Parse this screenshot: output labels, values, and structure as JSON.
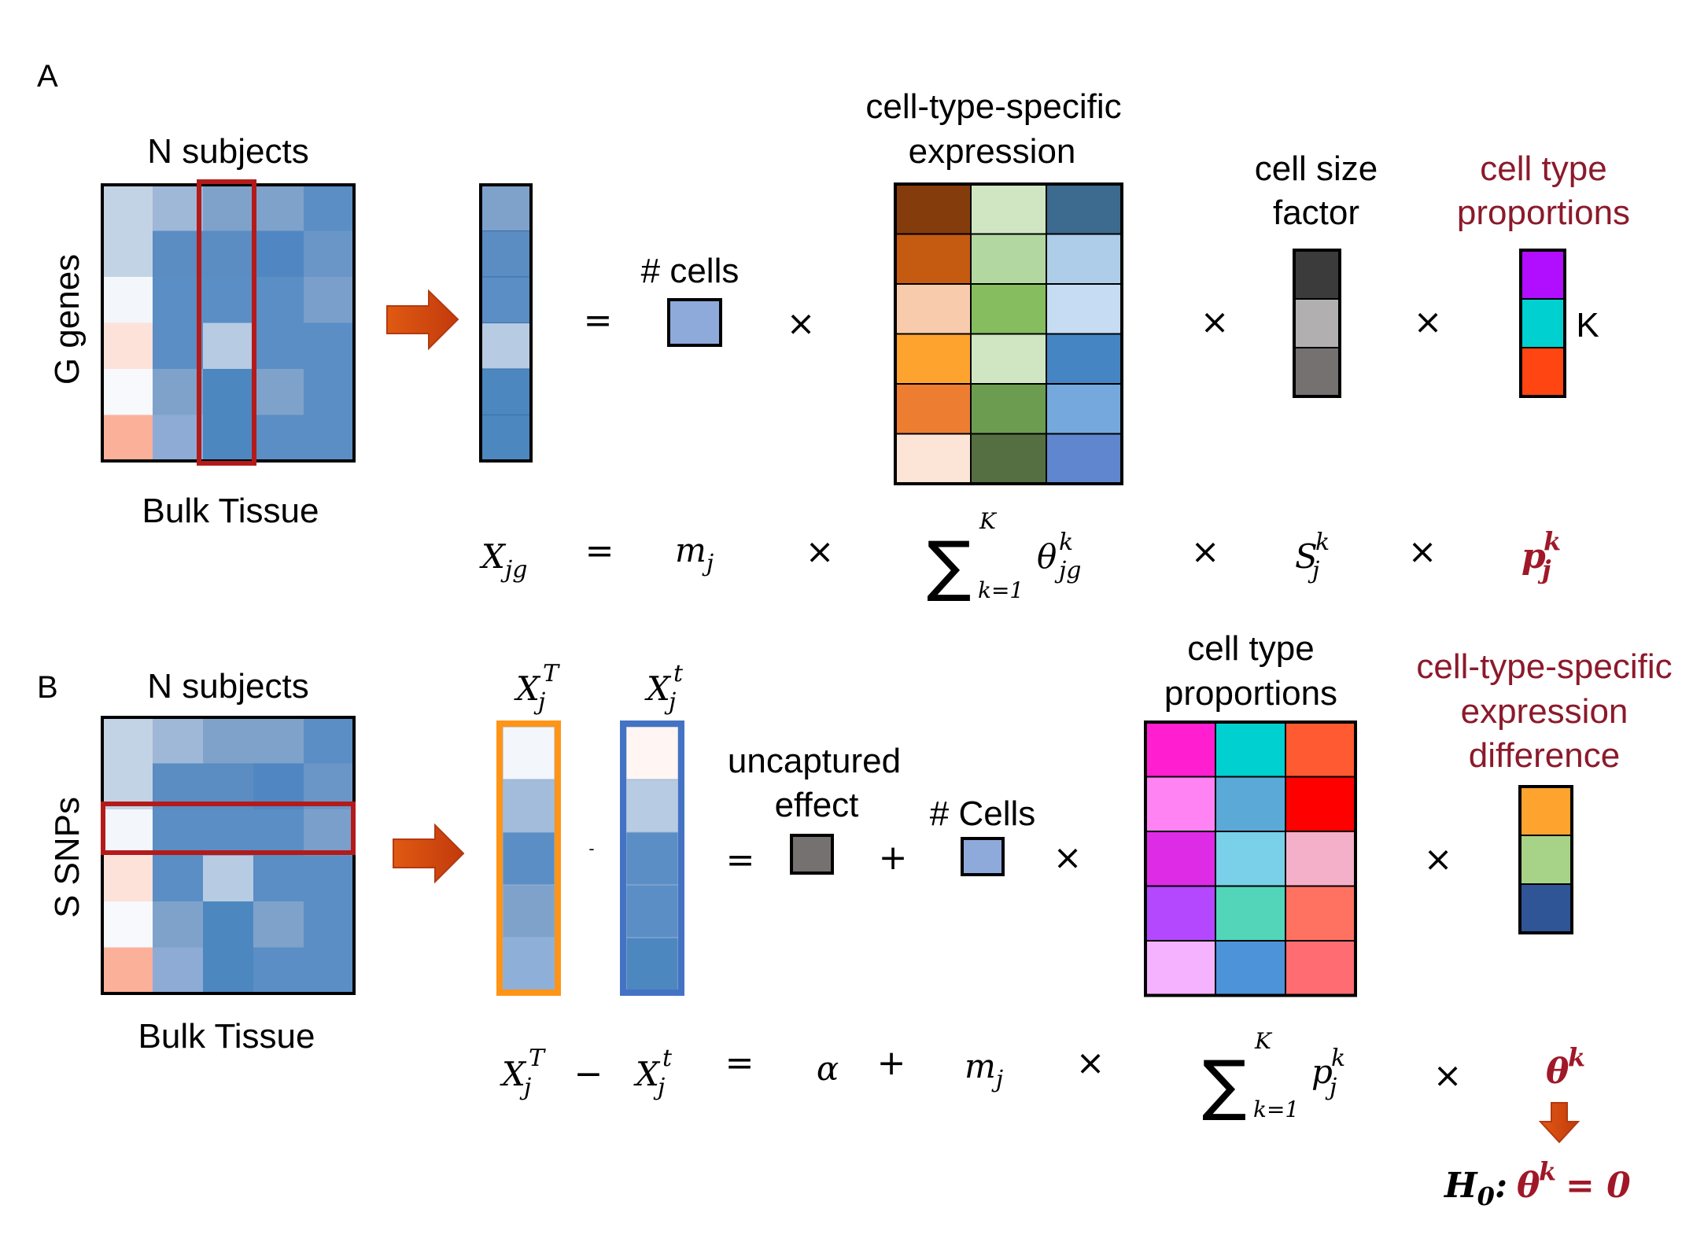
{
  "panel_a": {
    "letter": "A",
    "matrix_title": "N subjects",
    "matrix_side": "G genes",
    "matrix_caption": "Bulk Tissue",
    "ncells_label": "# cells",
    "cts_label_1": "cell-type-specific",
    "cts_label_2": "expression",
    "size_label_1": "cell size",
    "size_label_2": "factor",
    "prop_label_1": "cell type",
    "prop_label_2": "proportions",
    "k_label": "K",
    "equals": "=",
    "times": "×",
    "eq": {
      "x_base": "X",
      "x_sub": "jg",
      "m_base": "m",
      "m_sub": "j",
      "sum": "∑",
      "sum_upper": "K",
      "sum_lower": "k=1",
      "theta": "θ",
      "theta_sup": "k",
      "theta_sub": "jg",
      "s_base": "S",
      "s_sup": "k",
      "s_sub": "j",
      "p_base": "p",
      "p_sup": "k",
      "p_sub": "j"
    }
  },
  "panel_b": {
    "letter": "B",
    "matrix_title": "N subjects",
    "matrix_side": "S SNPs",
    "matrix_caption": "Bulk Tissue",
    "col1_base": "X",
    "col1_sup": "T",
    "col1_sub": "j",
    "col2_base": "X",
    "col2_sup": "t",
    "col2_sub": "j",
    "dash": "-",
    "unc_label_1": "uncaptured",
    "unc_label_2": "effect",
    "ncells_label": "# Cells",
    "prop_label_1": "cell type",
    "prop_label_2": "proportions",
    "diff_label_1": "cell-type-specific",
    "diff_label_2": "expression",
    "diff_label_3": "difference",
    "equals": "=",
    "plus": "+",
    "times": "×",
    "eq": {
      "minus": "−",
      "alpha": "α",
      "sum": "∑",
      "sum_upper": "K",
      "sum_lower": "k=1",
      "theta": "θ",
      "theta_sup": "k",
      "h0_base": "H",
      "h0_sub": "0",
      "h0_rest": ": ",
      "h0_eq": "= 0"
    }
  },
  "colors": {
    "highlight_red": "#b31b1b",
    "arrow_fill": "#d44a10",
    "label_red": "#8b1a2b",
    "orange_frame": "#ff9417",
    "blue_frame": "#4473c4",
    "ncells_fill": "#8eaadb",
    "uncaptured_fill": "#767171"
  }
}
